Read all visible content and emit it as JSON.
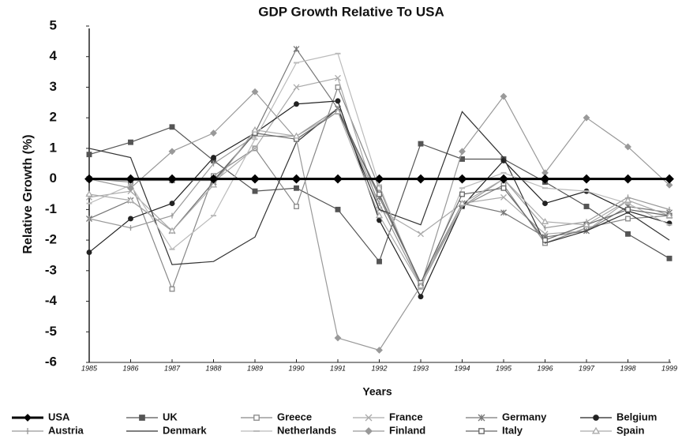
{
  "chart_data": {
    "type": "line",
    "title": "GDP Growth Relative To USA",
    "x_label": "Years",
    "y_label": "Relative Growth (%)",
    "categories": [
      "1985",
      "1986",
      "1987",
      "1988",
      "1989",
      "1990",
      "1991",
      "1992",
      "1993",
      "1994",
      "1995",
      "1996",
      "1997",
      "1998",
      "1999"
    ],
    "ylim": [
      -6,
      5
    ],
    "yticks": [
      -6,
      -5,
      -4,
      -3,
      -2,
      -1,
      0,
      1,
      2,
      3,
      4,
      5
    ],
    "grid": false,
    "legend": "bottom",
    "series": [
      {
        "name": "USA",
        "color": "#000000",
        "marker": "diamond",
        "values": [
          0,
          0,
          0,
          0,
          0,
          0,
          0,
          0,
          0,
          0,
          0,
          0,
          0,
          0,
          0
        ]
      },
      {
        "name": "UK",
        "color": "#555555",
        "marker": "square",
        "values": [
          0.8,
          1.2,
          1.7,
          0.6,
          -0.4,
          -0.3,
          -1.0,
          -2.7,
          1.15,
          0.65,
          0.65,
          -0.1,
          -0.9,
          -1.8,
          -2.6
        ]
      },
      {
        "name": "Greece",
        "color": "#888888",
        "marker": "open-square",
        "values": [
          0,
          -0.1,
          -3.6,
          0.1,
          1.0,
          -0.9,
          3.0,
          -0.3,
          -3.5,
          -0.9,
          -0.2,
          -2.1,
          -1.6,
          -1.3,
          -1.2
        ]
      },
      {
        "name": "France",
        "color": "#aaaaaa",
        "marker": "x",
        "values": [
          -0.6,
          -0.4,
          -1.7,
          -0.1,
          1.0,
          3.0,
          3.3,
          -1.0,
          -1.8,
          -0.8,
          -0.6,
          -1.8,
          -1.7,
          -0.7,
          -1.2
        ]
      },
      {
        "name": "Germany",
        "color": "#777777",
        "marker": "star",
        "values": [
          -1.3,
          -0.7,
          -1.7,
          -0.1,
          1.5,
          4.25,
          2.3,
          -0.6,
          -3.4,
          -0.8,
          -1.1,
          -1.9,
          -1.7,
          -0.9,
          -1.1
        ]
      },
      {
        "name": "Belgium",
        "color": "#222222",
        "marker": "circle",
        "values": [
          -2.4,
          -1.3,
          -0.8,
          0.7,
          1.5,
          2.45,
          2.55,
          -1.35,
          -3.85,
          -0.9,
          0.6,
          -0.8,
          -0.4,
          -1.05,
          -1.45
        ]
      },
      {
        "name": "Austria",
        "color": "#999999",
        "marker": "plus",
        "values": [
          -1.3,
          -1.6,
          -1.2,
          0.5,
          1.4,
          1.4,
          2.3,
          -0.8,
          -3.5,
          -0.9,
          0.0,
          -1.6,
          -1.4,
          -0.6,
          -1.0
        ]
      },
      {
        "name": "Denmark",
        "color": "#333333",
        "marker": "none",
        "values": [
          1.0,
          0.7,
          -2.8,
          -2.7,
          -1.9,
          1.2,
          2.3,
          -1.0,
          -1.5,
          2.2,
          0.7,
          -2.1,
          -1.7,
          -1.1,
          -2.0
        ]
      },
      {
        "name": "Netherlands",
        "color": "#bbbbbb",
        "marker": "dash",
        "values": [
          -0.8,
          -0.2,
          -2.3,
          -1.2,
          1.3,
          3.8,
          4.1,
          -0.2,
          -3.6,
          -0.3,
          0.2,
          -0.3,
          -0.4,
          -0.8,
          -1.5
        ]
      },
      {
        "name": "Finland",
        "color": "#999999",
        "marker": "diamond",
        "values": [
          0,
          -0.3,
          0.9,
          1.5,
          2.85,
          1.3,
          -5.2,
          -5.6,
          -3.5,
          0.9,
          2.7,
          0.2,
          2.0,
          1.05,
          -0.2
        ]
      },
      {
        "name": "Italy",
        "color": "#666666",
        "marker": "open-square",
        "values": [
          0,
          -0.05,
          -0.05,
          -0.05,
          1.5,
          1.3,
          2.2,
          -0.5,
          -3.4,
          -0.5,
          -0.3,
          -2.0,
          -1.5,
          -1.0,
          -1.2
        ]
      },
      {
        "name": "Spain",
        "color": "#aaaaaa",
        "marker": "open-triangle",
        "values": [
          -0.5,
          -0.7,
          -1.7,
          -0.2,
          1.6,
          1.4,
          2.2,
          -1.2,
          -3.5,
          -0.8,
          0.0,
          -1.4,
          -1.5,
          -0.7,
          -1.2
        ]
      }
    ]
  }
}
